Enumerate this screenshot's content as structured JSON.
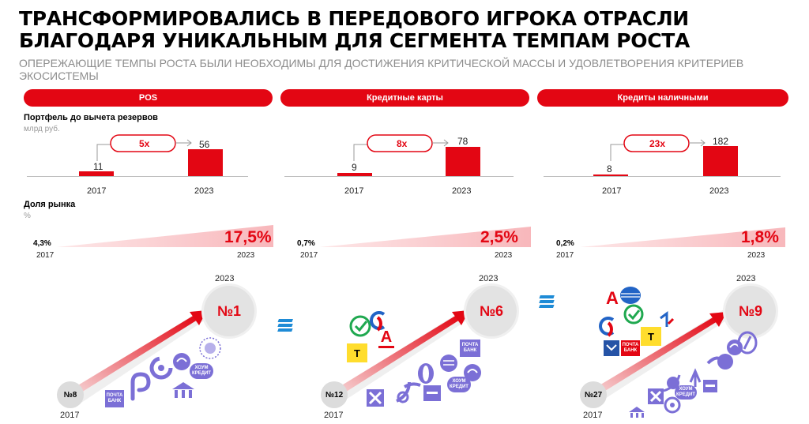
{
  "title": "ТРАНСФОРМИРОВАЛИСЬ В ПЕРЕДОВОГО ИГРОКА ОТРАСЛИ БЛАГОДАРЯ УНИКАЛЬНЫМ ДЛЯ СЕГМЕНТА ТЕМПАМ РОСТА",
  "subtitle": "ОПЕРЕЖАЮЩИЕ ТЕМПЫ РОСТА БЫЛИ НЕОБХОДИМЫ ДЛЯ ДОСТИЖЕНИЯ КРИТИЧЕСКОЙ МАССЫ И УДОВЛЕТВОРЕНИЯ КРИТЕРИЕВ ЭКОСИСТЕМЫ",
  "portfolio_label": "Портфель до вычета резервов",
  "portfolio_unit": "млрд руб.",
  "share_label": "Доля рынка",
  "share_unit": "%",
  "colors": {
    "accent": "#e30613",
    "logo": "#7b6fd6",
    "grey": "#dcdcdc"
  },
  "segments": [
    {
      "name": "POS",
      "portfolio": {
        "y2017": 11,
        "y2023": 56,
        "multiplier": "5x"
      },
      "share": {
        "v2017": "4,3%",
        "v2023": "17,5%"
      },
      "rank": {
        "start": "№8",
        "end": "№1"
      }
    },
    {
      "name": "Кредитные карты",
      "portfolio": {
        "y2017": 9,
        "y2023": 78,
        "multiplier": "8x"
      },
      "share": {
        "v2017": "0,7%",
        "v2023": "2,5%"
      },
      "rank": {
        "start": "№12",
        "end": "№6"
      }
    },
    {
      "name": "Кредиты наличными",
      "portfolio": {
        "y2017": 8,
        "y2023": 182,
        "multiplier": "23x"
      },
      "share": {
        "v2017": "0,2%",
        "v2023": "1,8%"
      },
      "rank": {
        "start": "№27",
        "end": "№9"
      }
    }
  ],
  "years": {
    "start": "2017",
    "end": "2023"
  },
  "logo_texts": {
    "pochta": "ПОЧТА БАНК",
    "home": "ХОУМ КРЕДИТ",
    "t": "Т",
    "a": "А"
  }
}
